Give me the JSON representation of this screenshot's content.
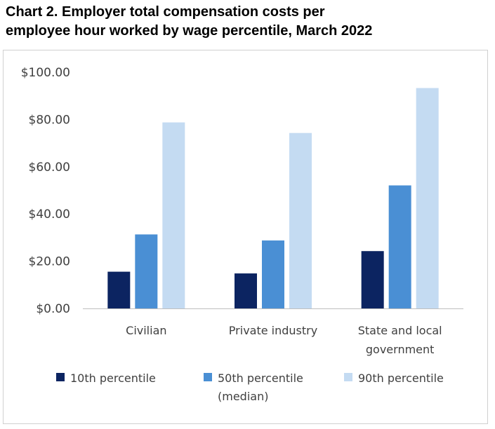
{
  "title": {
    "line1": "Chart 2. Employer total compensation costs per",
    "line2": "employee hour worked by wage percentile, March 2022"
  },
  "chart_data": {
    "type": "bar",
    "categories": [
      [
        "Civilian"
      ],
      [
        "Private industry"
      ],
      [
        "State and local",
        "government"
      ]
    ],
    "series": [
      {
        "name": [
          "10th percentile"
        ],
        "color": "#0c2461",
        "values": [
          15.55,
          14.82,
          24.27
        ]
      },
      {
        "name": [
          "50th percentile",
          "(median)"
        ],
        "color": "#4a8fd4",
        "values": [
          31.33,
          28.77,
          52.08
        ]
      },
      {
        "name": [
          "90th percentile"
        ],
        "color": "#c4dbf2",
        "values": [
          78.75,
          74.27,
          93.3
        ]
      }
    ],
    "ylim": [
      0,
      100
    ],
    "yticks": [
      "$0.00",
      "$20.00",
      "$40.00",
      "$60.00",
      "$80.00",
      "$100.00"
    ],
    "grid": false,
    "legend_position": "bottom"
  }
}
